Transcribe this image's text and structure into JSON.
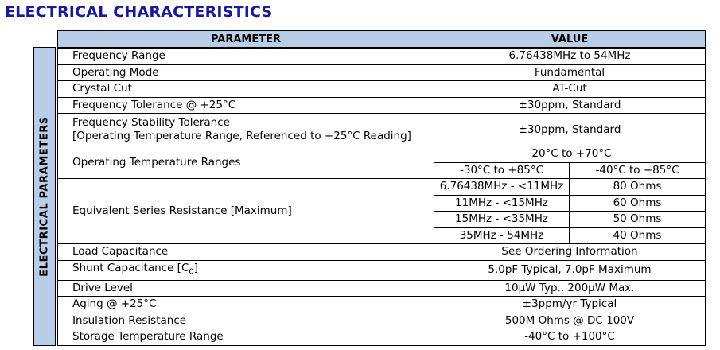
{
  "title": "ELECTRICAL CHARACTERISTICS",
  "sidebar_label": "ELECTRICAL PARAMETERS",
  "header": {
    "parameter": "PARAMETER",
    "value": "VALUE"
  },
  "rows": {
    "frequency_range": {
      "param": "Frequency Range",
      "value": "6.76438MHz to 54MHz"
    },
    "operating_mode": {
      "param": "Operating Mode",
      "value": "Fundamental"
    },
    "crystal_cut": {
      "param": "Crystal Cut",
      "value": "AT-Cut"
    },
    "frequency_tolerance": {
      "param": "Frequency Tolerance @ +25°C",
      "value": "±30ppm, Standard"
    },
    "frequency_stability": {
      "param_line1": "Frequency Stability Tolerance",
      "param_line2": "[Operating Temperature Range, Referenced to +25°C Reading]",
      "value": "±30ppm, Standard"
    },
    "operating_temp": {
      "param": "Operating Temperature Ranges",
      "value_top": "-20°C to +70°C",
      "value_left": "-30°C to +85°C",
      "value_right": "-40°C to +85°C"
    },
    "esr": {
      "param": "Equivalent Series Resistance  [Maximum]",
      "items": [
        {
          "range": "6.76438MHz - <11MHz",
          "ohms": "80 Ohms"
        },
        {
          "range": "11MHz - <15MHz",
          "ohms": "60 Ohms"
        },
        {
          "range": "15MHz - <35MHz",
          "ohms": "50 Ohms"
        },
        {
          "range": "35MHz - 54MHz",
          "ohms": "40 Ohms"
        }
      ]
    },
    "load_capacitance": {
      "param": "Load Capacitance",
      "value": "See Ordering Information"
    },
    "shunt_capacitance": {
      "param": "Shunt Capacitance  [C",
      "param_sub": "0",
      "param_end": "]",
      "value": "5.0pF Typical, 7.0pF Maximum"
    },
    "drive_level": {
      "param": "Drive Level",
      "value": "10µW Typ., 200µW Max."
    },
    "aging": {
      "param": "Aging @ +25°C",
      "value": "±3ppm/yr Typical"
    },
    "insulation_resistance": {
      "param": "Insulation Resistance",
      "value": "500M Ohms @ DC 100V"
    },
    "storage_temp": {
      "param": "Storage Temperature Range",
      "value": "-40°C to +100°C"
    }
  }
}
